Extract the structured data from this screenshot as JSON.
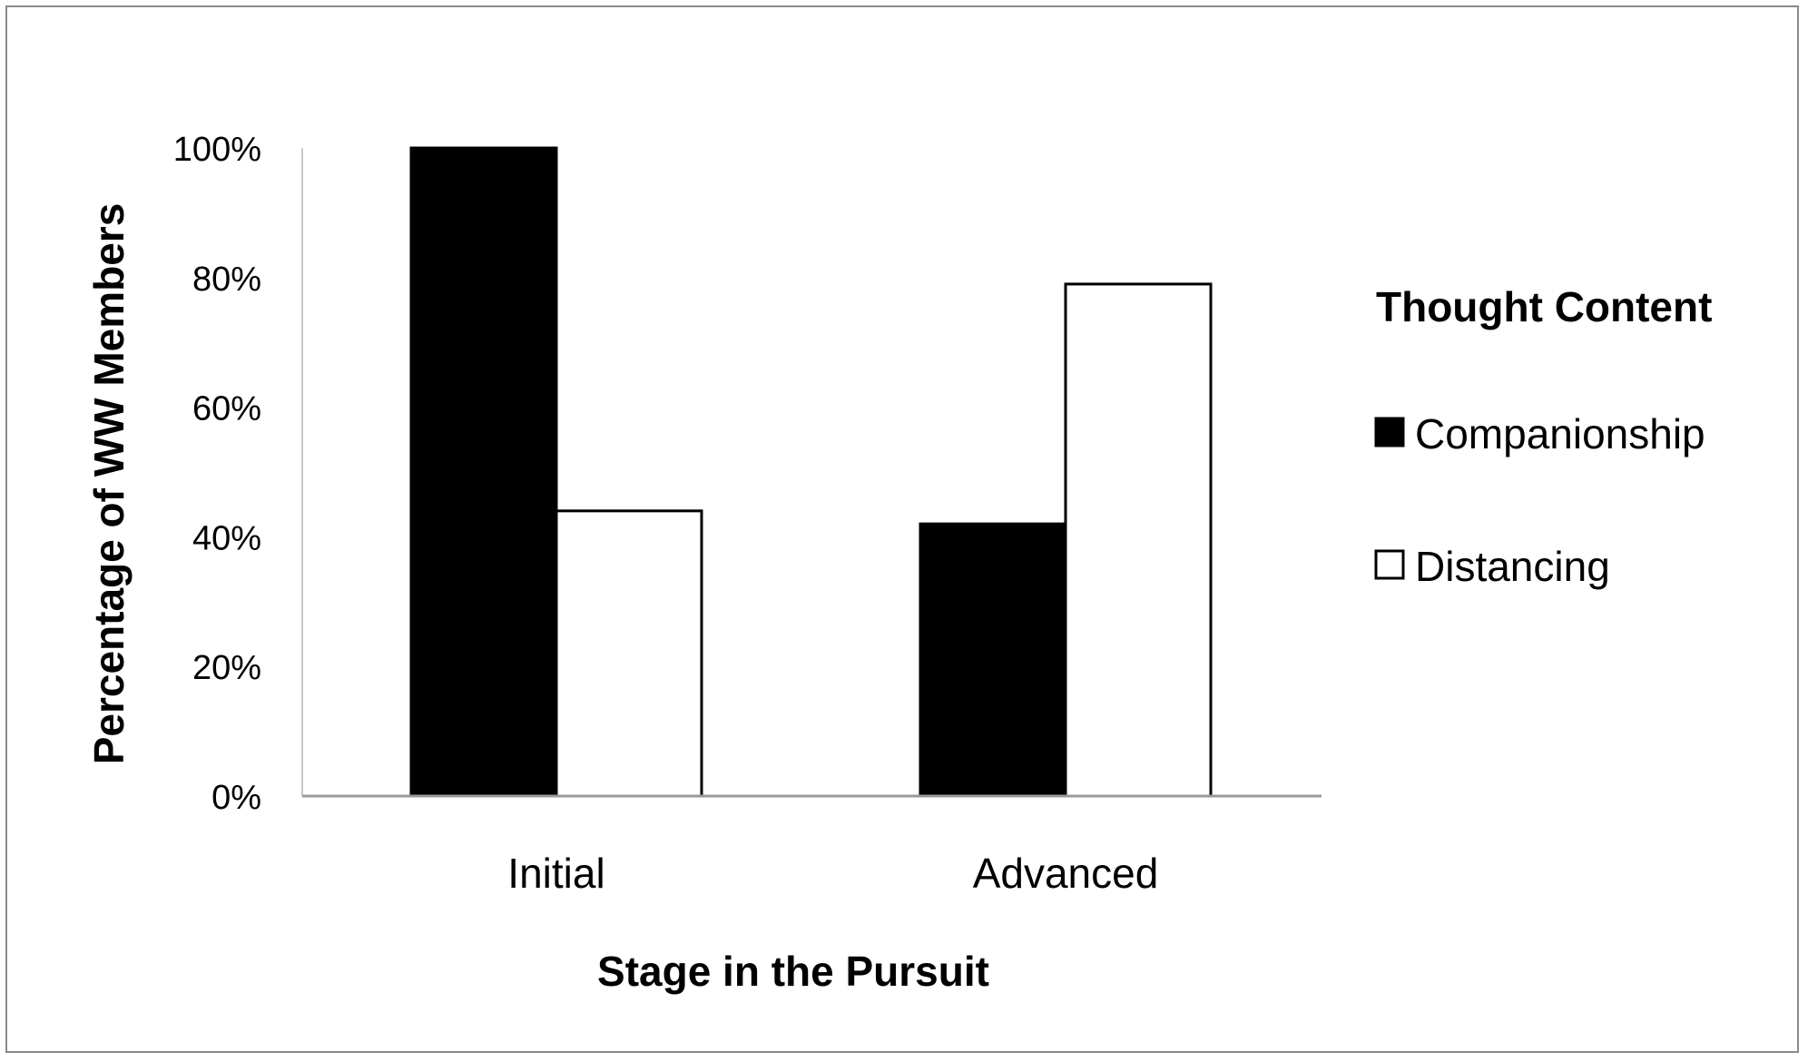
{
  "chart_data": {
    "type": "bar",
    "categories": [
      "Initial",
      "Advanced"
    ],
    "series": [
      {
        "name": "Companionship",
        "values": [
          100,
          42
        ],
        "color": "#000000"
      },
      {
        "name": "Distancing",
        "values": [
          44,
          79
        ],
        "color": "#ffffff"
      }
    ],
    "xlabel": "Stage in the Pursuit",
    "ylabel": "Percentage of WW Members",
    "ylim": [
      0,
      100
    ],
    "yticks": [
      "0%",
      "20%",
      "40%",
      "60%",
      "80%",
      "100%"
    ],
    "ytick_values": [
      0,
      20,
      40,
      60,
      80,
      100
    ],
    "legend": {
      "title": "Thought Content",
      "placement": "right"
    },
    "grid": false
  }
}
